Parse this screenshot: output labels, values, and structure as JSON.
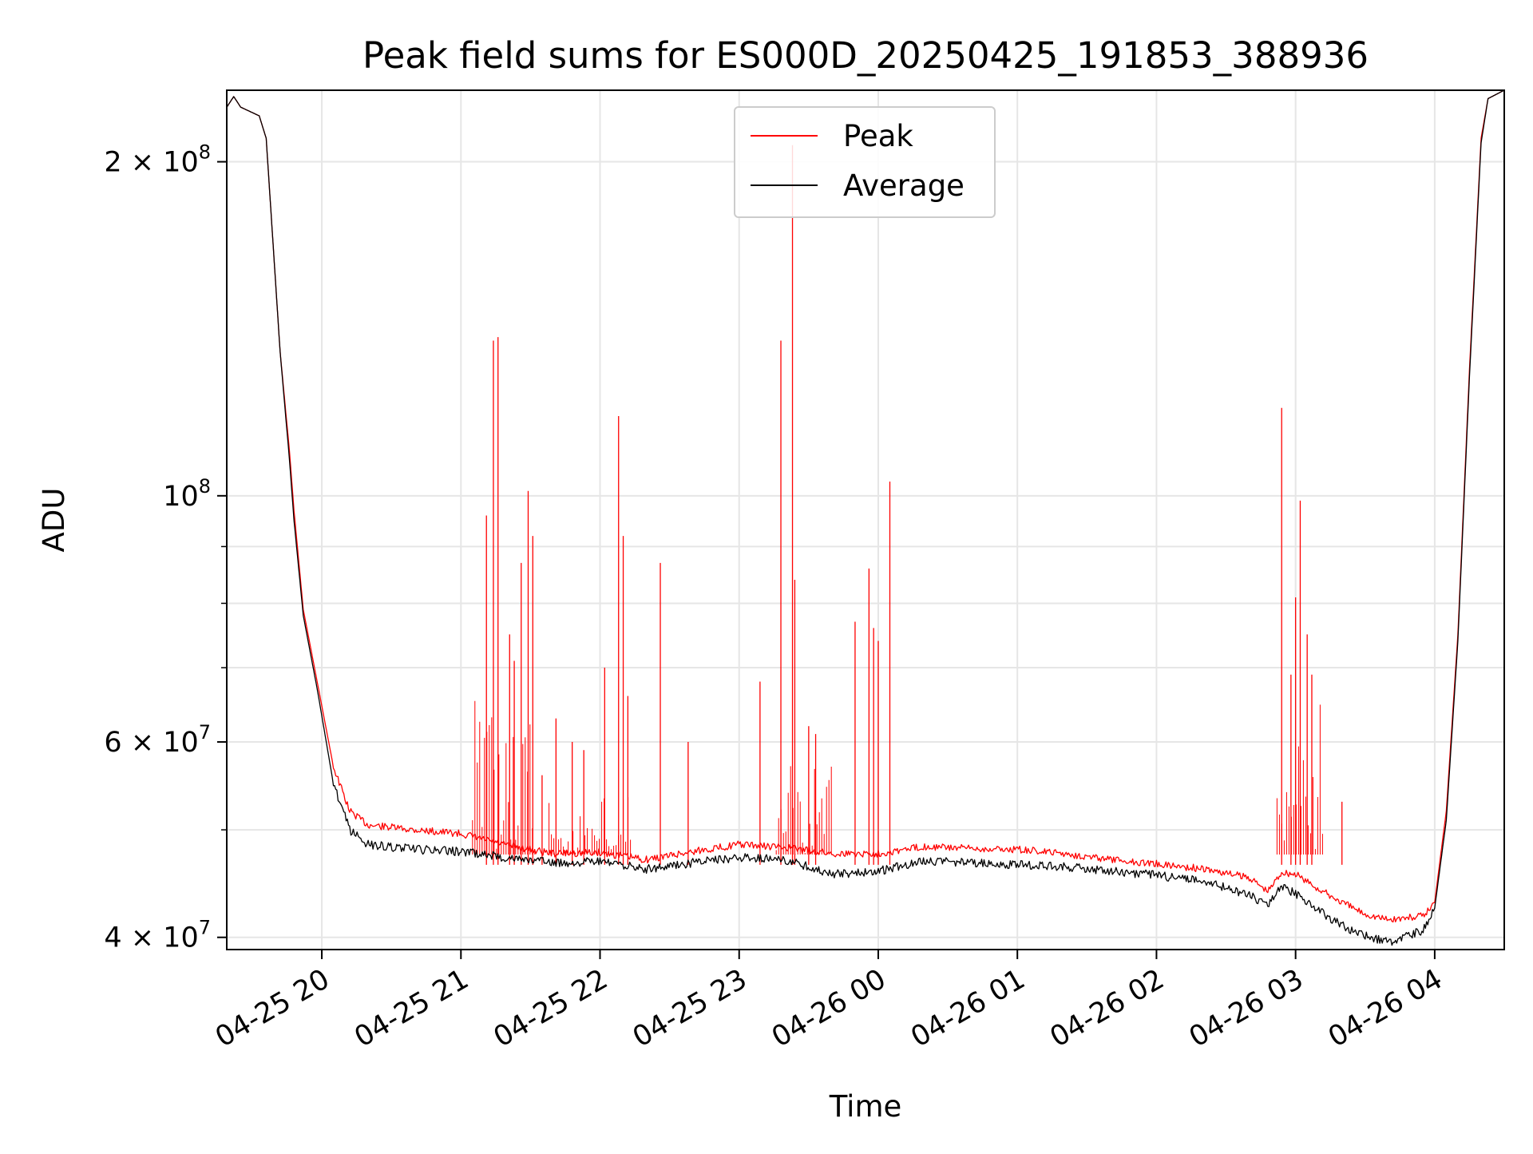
{
  "chart_data": {
    "type": "line",
    "title": "Peak field sums for ES000D_20250425_191853_388936",
    "xlabel": "Time",
    "ylabel": "ADU",
    "yscale": "log",
    "ylim": [
      39000000,
      232000000
    ],
    "xlim": [
      "2025-04-25 19:19",
      "2025-04-26 04:30"
    ],
    "grid": true,
    "legend_position": "top-center",
    "x_ticks": [
      {
        "t": "2025-04-25 20:00",
        "label": "04-25 20"
      },
      {
        "t": "2025-04-25 21:00",
        "label": "04-25 21"
      },
      {
        "t": "2025-04-25 22:00",
        "label": "04-25 22"
      },
      {
        "t": "2025-04-25 23:00",
        "label": "04-25 23"
      },
      {
        "t": "2025-04-26 00:00",
        "label": "04-26 00"
      },
      {
        "t": "2025-04-26 01:00",
        "label": "04-26 01"
      },
      {
        "t": "2025-04-26 02:00",
        "label": "04-26 02"
      },
      {
        "t": "2025-04-26 03:00",
        "label": "04-26 03"
      },
      {
        "t": "2025-04-26 04:00",
        "label": "04-26 04"
      }
    ],
    "y_ticks": [
      {
        "value": 40000000,
        "base": "4 × 10",
        "exp": "7"
      },
      {
        "value": 60000000,
        "base": "6 × 10",
        "exp": "7"
      },
      {
        "value": 100000000,
        "base": "10",
        "exp": "8"
      },
      {
        "value": 200000000,
        "base": "2 × 10",
        "exp": "8"
      }
    ],
    "y_minor_ticks": [
      50000000,
      70000000,
      80000000,
      90000000
    ],
    "series": [
      {
        "name": "Peak",
        "color": "#ff0000",
        "points": [
          [
            "2025-04-25 19:19",
            224000000
          ],
          [
            "2025-04-25 19:22",
            229000000
          ],
          [
            "2025-04-25 19:25",
            224000000
          ],
          [
            "2025-04-25 19:33",
            220000000
          ],
          [
            "2025-04-25 19:36",
            210000000
          ],
          [
            "2025-04-25 19:42",
            135000000
          ],
          [
            "2025-04-25 19:46",
            110000000
          ],
          [
            "2025-04-25 19:48",
            97000000
          ],
          [
            "2025-04-25 19:52",
            79000000
          ],
          [
            "2025-04-25 19:58",
            68000000
          ],
          [
            "2025-04-25 20:05",
            57000000
          ],
          [
            "2025-04-25 20:12",
            52000000
          ],
          [
            "2025-04-25 20:20",
            50500000
          ],
          [
            "2025-04-25 20:40",
            50000000
          ],
          [
            "2025-04-25 21:00",
            49600000
          ],
          [
            "2025-04-25 21:20",
            48400000
          ],
          [
            "2025-04-25 21:40",
            47600000
          ],
          [
            "2025-04-25 22:00",
            47700000
          ],
          [
            "2025-04-25 22:20",
            47000000
          ],
          [
            "2025-04-25 22:40",
            47800000
          ],
          [
            "2025-04-25 23:00",
            48500000
          ],
          [
            "2025-04-25 23:20",
            48200000
          ],
          [
            "2025-04-25 23:40",
            47600000
          ],
          [
            "2025-04-26 00:00",
            47600000
          ],
          [
            "2025-04-26 00:20",
            48300000
          ],
          [
            "2025-04-26 00:40",
            48100000
          ],
          [
            "2025-04-26 01:00",
            48000000
          ],
          [
            "2025-04-26 01:20",
            47600000
          ],
          [
            "2025-04-26 01:40",
            47000000
          ],
          [
            "2025-04-26 02:00",
            46600000
          ],
          [
            "2025-04-26 02:20",
            46100000
          ],
          [
            "2025-04-26 02:40",
            45300000
          ],
          [
            "2025-04-26 02:48",
            44000000
          ],
          [
            "2025-04-26 02:54",
            45800000
          ],
          [
            "2025-04-26 03:00",
            45600000
          ],
          [
            "2025-04-26 03:10",
            44200000
          ],
          [
            "2025-04-26 03:20",
            43000000
          ],
          [
            "2025-04-26 03:30",
            42000000
          ],
          [
            "2025-04-26 03:40",
            41500000
          ],
          [
            "2025-04-26 03:55",
            41800000
          ],
          [
            "2025-04-26 04:00",
            43000000
          ],
          [
            "2025-04-26 04:05",
            52000000
          ],
          [
            "2025-04-26 04:10",
            75000000
          ],
          [
            "2025-04-26 04:15",
            130000000
          ],
          [
            "2025-04-26 04:20",
            210000000
          ],
          [
            "2025-04-26 04:23",
            228000000
          ],
          [
            "2025-04-26 04:30",
            232000000
          ]
        ]
      },
      {
        "name": "Average",
        "color": "#000000",
        "points": [
          [
            "2025-04-25 19:19",
            224000000
          ],
          [
            "2025-04-25 19:22",
            229000000
          ],
          [
            "2025-04-25 19:25",
            224000000
          ],
          [
            "2025-04-25 19:33",
            220000000
          ],
          [
            "2025-04-25 19:36",
            210000000
          ],
          [
            "2025-04-25 19:42",
            135000000
          ],
          [
            "2025-04-25 19:46",
            108000000
          ],
          [
            "2025-04-25 19:48",
            95000000
          ],
          [
            "2025-04-25 19:52",
            78000000
          ],
          [
            "2025-04-25 19:58",
            67000000
          ],
          [
            "2025-04-25 20:05",
            55000000
          ],
          [
            "2025-04-25 20:12",
            50000000
          ],
          [
            "2025-04-25 20:20",
            48500000
          ],
          [
            "2025-04-25 20:40",
            48000000
          ],
          [
            "2025-04-25 21:00",
            47800000
          ],
          [
            "2025-04-25 21:20",
            47200000
          ],
          [
            "2025-04-25 21:40",
            46700000
          ],
          [
            "2025-04-25 22:00",
            46800000
          ],
          [
            "2025-04-25 22:20",
            46100000
          ],
          [
            "2025-04-25 22:40",
            46700000
          ],
          [
            "2025-04-25 23:00",
            47200000
          ],
          [
            "2025-04-25 23:20",
            47000000
          ],
          [
            "2025-04-25 23:40",
            45600000
          ],
          [
            "2025-04-26 00:00",
            45900000
          ],
          [
            "2025-04-26 00:20",
            46900000
          ],
          [
            "2025-04-26 00:40",
            46700000
          ],
          [
            "2025-04-26 01:00",
            46500000
          ],
          [
            "2025-04-26 01:20",
            46300000
          ],
          [
            "2025-04-26 01:40",
            45900000
          ],
          [
            "2025-04-26 02:00",
            45500000
          ],
          [
            "2025-04-26 02:20",
            45000000
          ],
          [
            "2025-04-26 02:40",
            43700000
          ],
          [
            "2025-04-26 02:48",
            42800000
          ],
          [
            "2025-04-26 02:54",
            44500000
          ],
          [
            "2025-04-26 03:00",
            43800000
          ],
          [
            "2025-04-26 03:10",
            42300000
          ],
          [
            "2025-04-26 03:20",
            41000000
          ],
          [
            "2025-04-26 03:30",
            40100000
          ],
          [
            "2025-04-26 03:40",
            39600000
          ],
          [
            "2025-04-26 03:55",
            40600000
          ],
          [
            "2025-04-26 04:00",
            42500000
          ],
          [
            "2025-04-26 04:05",
            51000000
          ],
          [
            "2025-04-26 04:10",
            74000000
          ],
          [
            "2025-04-26 04:15",
            128000000
          ],
          [
            "2025-04-26 04:20",
            208000000
          ],
          [
            "2025-04-26 04:23",
            228000000
          ],
          [
            "2025-04-26 04:30",
            232000000
          ]
        ]
      }
    ],
    "peak_spikes": [
      [
        "2025-04-25 21:11",
        96000000
      ],
      [
        "2025-04-25 21:14",
        138000000
      ],
      [
        "2025-04-25 21:16",
        139000000
      ],
      [
        "2025-04-25 21:21",
        75000000
      ],
      [
        "2025-04-25 21:23",
        71000000
      ],
      [
        "2025-04-25 21:26",
        87000000
      ],
      [
        "2025-04-25 21:29",
        101000000
      ],
      [
        "2025-04-25 21:31",
        92000000
      ],
      [
        "2025-04-25 21:35",
        56000000
      ],
      [
        "2025-04-25 21:41",
        63000000
      ],
      [
        "2025-04-25 21:48",
        60000000
      ],
      [
        "2025-04-25 21:53",
        59000000
      ],
      [
        "2025-04-25 22:02",
        70000000
      ],
      [
        "2025-04-25 22:08",
        118000000
      ],
      [
        "2025-04-25 22:10",
        92000000
      ],
      [
        "2025-04-25 22:12",
        66000000
      ],
      [
        "2025-04-25 22:26",
        87000000
      ],
      [
        "2025-04-25 22:38",
        60000000
      ],
      [
        "2025-04-25 23:09",
        68000000
      ],
      [
        "2025-04-25 23:18",
        138000000
      ],
      [
        "2025-04-25 23:23",
        207000000
      ],
      [
        "2025-04-25 23:24",
        84000000
      ],
      [
        "2025-04-25 23:30",
        62000000
      ],
      [
        "2025-04-25 23:33",
        61000000
      ],
      [
        "2025-04-25 23:50",
        77000000
      ],
      [
        "2025-04-25 23:56",
        86000000
      ],
      [
        "2025-04-25 23:58",
        76000000
      ],
      [
        "2025-04-26 00:00",
        74000000
      ],
      [
        "2025-04-26 00:05",
        103000000
      ],
      [
        "2025-04-26 02:54",
        120000000
      ],
      [
        "2025-04-26 02:58",
        69000000
      ],
      [
        "2025-04-26 03:00",
        81000000
      ],
      [
        "2025-04-26 03:02",
        99000000
      ],
      [
        "2025-04-26 03:05",
        75000000
      ],
      [
        "2025-04-26 03:07",
        69000000
      ],
      [
        "2025-04-26 03:20",
        53000000
      ]
    ]
  }
}
